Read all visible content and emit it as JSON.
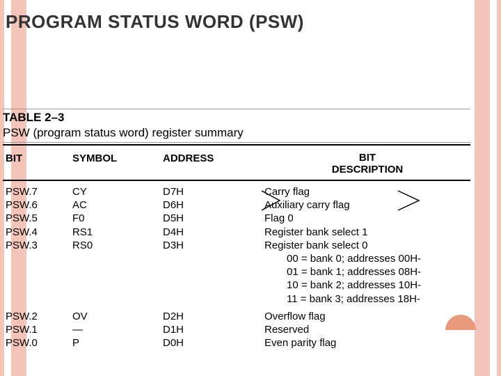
{
  "title": "PROGRAM STATUS WORD (PSW)",
  "table": {
    "label": "TABLE 2–3",
    "subtitle": "PSW (program status word) register summary",
    "columns": {
      "bit": "BIT",
      "symbol": "SYMBOL",
      "address": "ADDRESS",
      "description_line1": "BIT",
      "description_line2": "DESCRIPTION"
    },
    "rows_upper": [
      {
        "bit": "PSW.7",
        "symbol": "CY",
        "address": "D7H",
        "desc": "Carry flag"
      },
      {
        "bit": "PSW.6",
        "symbol": "AC",
        "address": "D6H",
        "desc": "Auxiliary carry flag"
      },
      {
        "bit": "PSW.5",
        "symbol": "F0",
        "address": "D5H",
        "desc": "Flag 0"
      },
      {
        "bit": "PSW.4",
        "symbol": "RS1",
        "address": "D4H",
        "desc": "Register bank select 1"
      },
      {
        "bit": "PSW.3",
        "symbol": "RS0",
        "address": "D3H",
        "desc": "Register bank select 0"
      }
    ],
    "bank_notes": [
      "00 = bank 0; addresses 00H-",
      "01 = bank 1; addresses 08H-",
      "10 = bank 2; addresses 10H-",
      "11 = bank 3; addresses 18H-"
    ],
    "rows_lower": [
      {
        "bit": "PSW.2",
        "symbol": "OV",
        "address": "D2H",
        "desc": "Overflow flag"
      },
      {
        "bit": "PSW.1",
        "symbol": "—",
        "address": "D1H",
        "desc": "Reserved"
      },
      {
        "bit": "PSW.0",
        "symbol": "P",
        "address": "D0H",
        "desc": "Even parity flag"
      }
    ]
  },
  "colors": {
    "stripe": "#f5c4b8",
    "accent": "#e89a7a",
    "text": "#000000",
    "title": "#333333"
  }
}
